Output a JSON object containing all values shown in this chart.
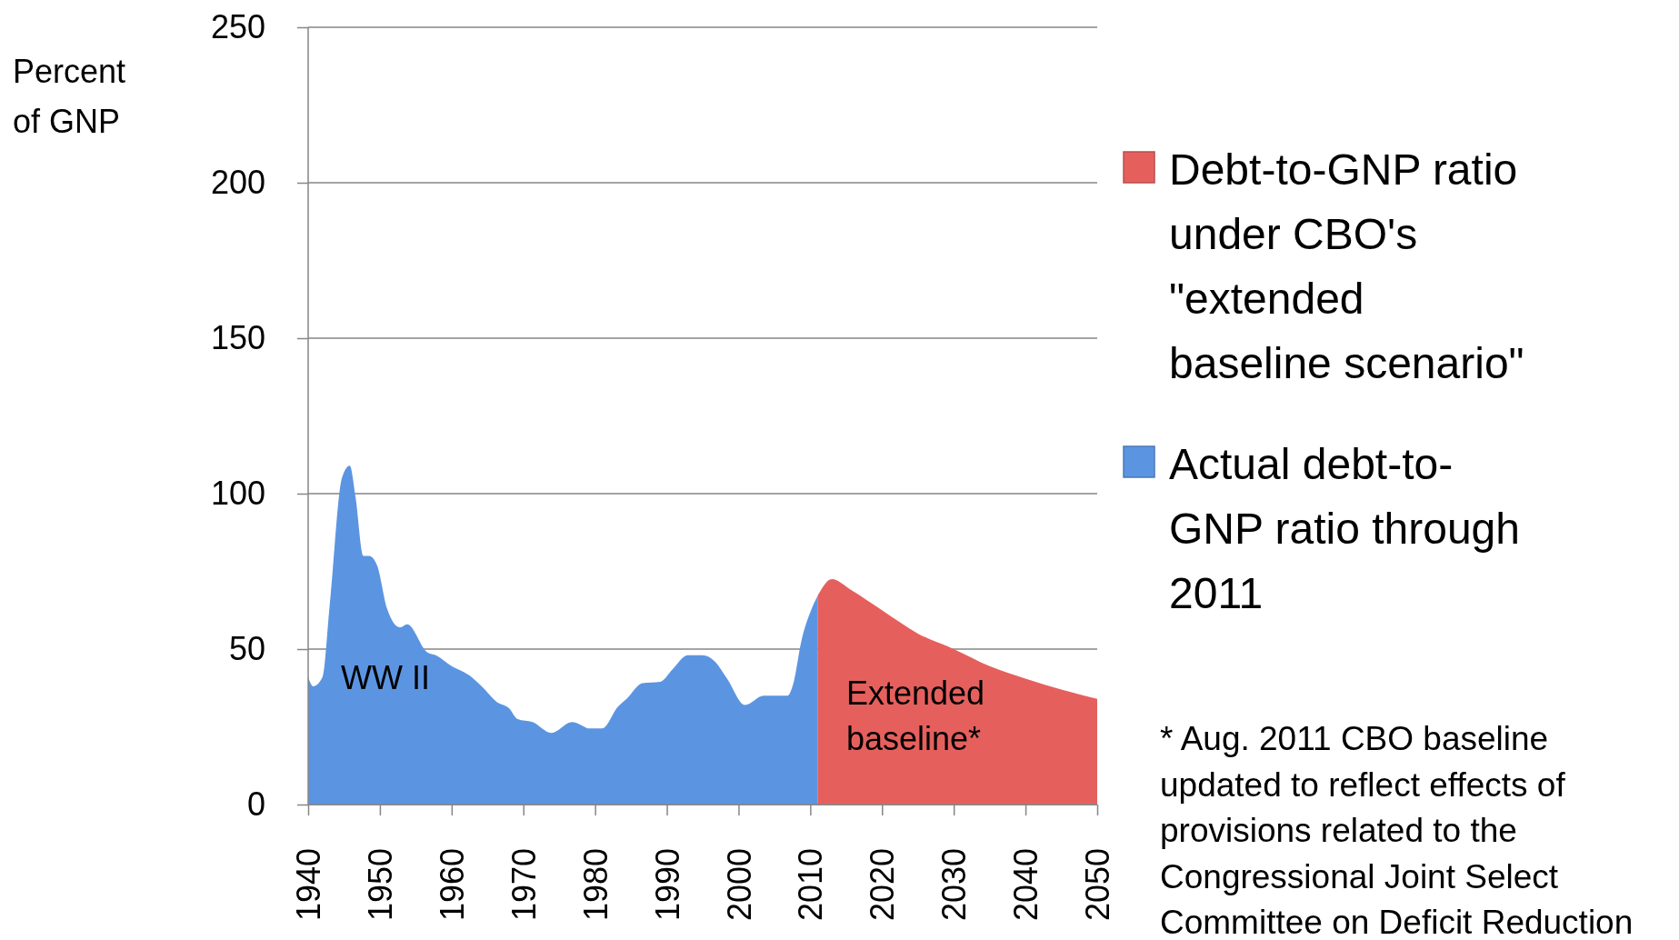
{
  "chart_data": {
    "type": "area",
    "ylabel": "Percent of GNP",
    "xlim": [
      1940,
      2050
    ],
    "xticks": [
      1940,
      1950,
      1960,
      1970,
      1980,
      1990,
      2000,
      2010,
      2020,
      2030,
      2040,
      2050
    ],
    "ylim": [
      0,
      250
    ],
    "yticks": [
      0,
      50,
      100,
      150,
      200,
      250
    ],
    "grid": "y",
    "legend": "right",
    "series": [
      {
        "name": "Debt-to-GNP ratio under CBO's \"extended baseline scenario\"",
        "color": "#e5605d",
        "x": [
          2011,
          2013,
          2015.7,
          2020,
          2025,
          2030,
          2035,
          2040,
          2045,
          2050
        ],
        "values": [
          67,
          72.5,
          69,
          62.5,
          55,
          50,
          44.5,
          40.5,
          37,
          34
        ]
      },
      {
        "name": "Actual debt-to-GNP ratio through 2011",
        "color": "#5b95e2",
        "x": [
          1940,
          1940.7,
          1942,
          1943,
          1944.7,
          1945.8,
          1946.6,
          1947.7,
          1948.5,
          1949.6,
          1951,
          1952.8,
          1953.8,
          1956.6,
          1957.8,
          1960,
          1962.5,
          1964.2,
          1966.3,
          1968,
          1969.2,
          1971.3,
          1973.9,
          1976.8,
          1978.5,
          1979,
          1981,
          1983.2,
          1984.4,
          1986.6,
          1989.1,
          1990.8,
          1992.9,
          1995,
          1996.7,
          1998.4,
          2000.9,
          2003.5,
          2006.8,
          2007.7,
          2008.7,
          2010.2,
          2011
        ],
        "values": [
          41,
          38,
          41,
          64,
          105,
          109,
          99,
          80,
          80,
          77,
          63,
          57,
          58,
          49,
          48,
          44.5,
          41.5,
          38,
          33,
          31,
          27.5,
          26.5,
          23,
          26.5,
          25,
          24.5,
          24.5,
          31.5,
          34,
          39,
          39.5,
          43.5,
          48,
          48,
          46,
          40.5,
          32,
          35,
          35,
          39.5,
          52,
          63,
          67
        ]
      }
    ],
    "annotations": [
      "WW II",
      "Extended baseline*",
      "* Aug. 2011 CBO baseline updated to reflect effects of provisions related to the Congressional Joint Select Committee on Deficit Reduction"
    ]
  }
}
